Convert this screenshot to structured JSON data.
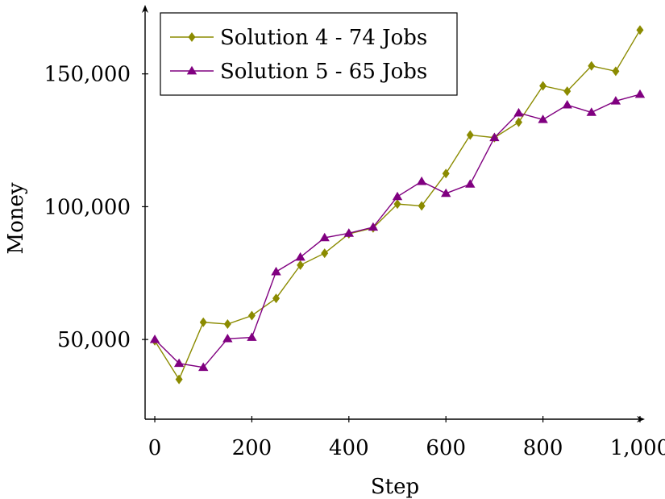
{
  "chart_data": {
    "type": "line",
    "xlabel": "Step",
    "ylabel": "Money",
    "xlim": [
      -20,
      1010
    ],
    "ylim": [
      20000,
      176000
    ],
    "xticks": [
      0,
      200,
      400,
      600,
      800,
      1000
    ],
    "xtick_labels": [
      "0",
      "200",
      "400",
      "600",
      "800",
      "1,000"
    ],
    "yticks": [
      50000,
      100000,
      150000
    ],
    "ytick_labels": [
      "50,000",
      "100,000",
      "150,000"
    ],
    "legend_position": "top-left",
    "x": [
      0,
      50,
      100,
      150,
      200,
      250,
      300,
      350,
      400,
      450,
      500,
      550,
      600,
      650,
      700,
      750,
      800,
      850,
      900,
      950,
      1000
    ],
    "series": [
      {
        "name": "Solution 4 - 74 Jobs",
        "color": "#8b8b00",
        "marker": "diamond",
        "values": [
          49500,
          35000,
          56500,
          55800,
          59000,
          65500,
          78000,
          82500,
          89800,
          92000,
          101000,
          100300,
          112500,
          127000,
          126000,
          131800,
          145500,
          143500,
          153000,
          151000,
          166500
        ]
      },
      {
        "name": "Solution 5 - 65 Jobs",
        "color": "#800080",
        "marker": "triangle",
        "values": [
          50000,
          41000,
          39500,
          50300,
          50800,
          75500,
          81000,
          88300,
          90000,
          92300,
          103800,
          109500,
          105000,
          108500,
          126000,
          135300,
          132800,
          138300,
          135500,
          139800,
          142300
        ]
      }
    ]
  }
}
